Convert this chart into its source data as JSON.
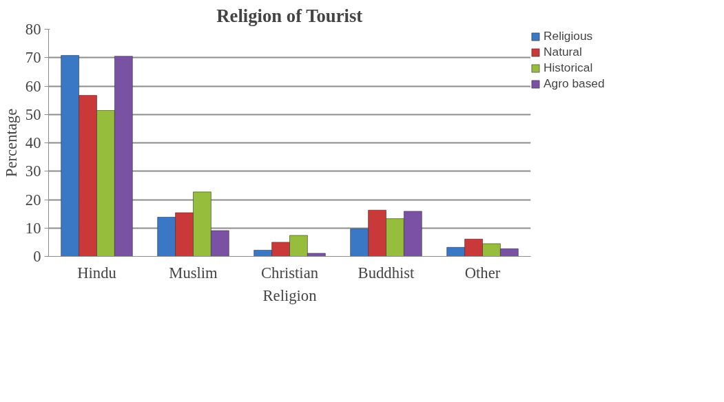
{
  "chart_data": {
    "type": "bar",
    "title": "Religion of Tourist",
    "xlabel": "Religion",
    "ylabel": "Percentage",
    "categories": [
      "Hindu",
      "Muslim",
      "Christian",
      "Buddhist",
      "Other"
    ],
    "series": [
      {
        "name": "Religious",
        "color": "#3a77c4",
        "values": [
          70.8,
          13.8,
          2.2,
          9.7,
          3.2
        ]
      },
      {
        "name": "Natural",
        "color": "#c9393a",
        "values": [
          56.7,
          15.4,
          5.0,
          16.3,
          6.1
        ]
      },
      {
        "name": "Historical",
        "color": "#97bd3d",
        "values": [
          51.4,
          22.7,
          7.4,
          13.3,
          4.5
        ]
      },
      {
        "name": "Agro based",
        "color": "#7952a3",
        "values": [
          70.5,
          9.1,
          1.1,
          15.9,
          2.7
        ]
      }
    ],
    "ylim": [
      0,
      80
    ],
    "yticks": [
      0,
      10,
      20,
      30,
      40,
      50,
      60,
      70,
      80
    ],
    "grid": "y",
    "legend": "top right"
  }
}
